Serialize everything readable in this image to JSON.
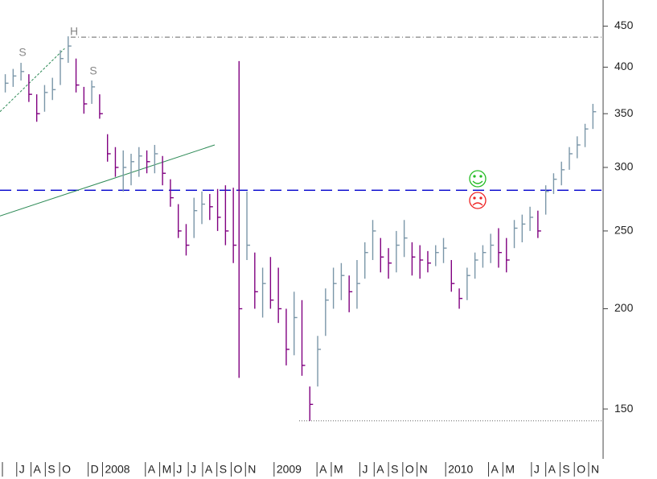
{
  "chart_data": {
    "type": "ohlc",
    "log_scale": true,
    "ylim": [
      130,
      485
    ],
    "yticks": [
      150,
      200,
      250,
      300,
      350,
      400,
      450
    ],
    "xlim": [
      0,
      41.9
    ],
    "xticks": [
      {
        "value": 1,
        "label": "J"
      },
      {
        "value": 2,
        "label": "A"
      },
      {
        "value": 3,
        "label": "S"
      },
      {
        "value": 4,
        "label": "O"
      },
      {
        "value": 6,
        "label": "D"
      },
      {
        "value": 7,
        "label": "2008"
      },
      {
        "value": 10,
        "label": "A"
      },
      {
        "value": 11,
        "label": "M"
      },
      {
        "value": 12,
        "label": "J"
      },
      {
        "value": 13,
        "label": "J"
      },
      {
        "value": 14,
        "label": "A"
      },
      {
        "value": 15,
        "label": "S"
      },
      {
        "value": 16,
        "label": "O"
      },
      {
        "value": 17,
        "label": "N"
      },
      {
        "value": 19,
        "label": "2009"
      },
      {
        "value": 22,
        "label": "A"
      },
      {
        "value": 23,
        "label": "M"
      },
      {
        "value": 25,
        "label": "J"
      },
      {
        "value": 26,
        "label": "A"
      },
      {
        "value": 27,
        "label": "S"
      },
      {
        "value": 28,
        "label": "O"
      },
      {
        "value": 29,
        "label": "N"
      },
      {
        "value": 31,
        "label": "2010"
      },
      {
        "value": 34,
        "label": "A"
      },
      {
        "value": 35,
        "label": "M"
      },
      {
        "value": 37,
        "label": "J"
      },
      {
        "value": 38,
        "label": "A"
      },
      {
        "value": 39,
        "label": "S"
      },
      {
        "value": 40,
        "label": "O"
      },
      {
        "value": 41,
        "label": "N"
      }
    ],
    "up_color": "#7a96a8",
    "down_color": "#800080",
    "x": [
      0.2,
      0.75,
      1.3,
      1.85,
      2.4,
      2.95,
      3.5,
      4.05,
      4.6,
      5.15,
      5.7,
      6.25,
      6.8,
      7.35,
      7.9,
      8.45,
      9.0,
      9.55,
      10.1,
      10.65,
      11.2,
      11.75,
      12.3,
      12.85,
      13.4,
      13.95,
      14.5,
      15.05,
      15.6,
      16.15,
      16.55,
      17.1,
      17.65,
      18.2,
      18.75,
      19.3,
      19.85,
      20.4,
      20.95,
      21.5,
      22.05,
      22.6,
      23.15,
      23.7,
      24.25,
      24.8,
      25.35,
      25.9,
      26.45,
      27.0,
      27.55,
      28.1,
      28.65,
      29.2,
      29.75,
      30.3,
      30.85,
      31.4,
      31.95,
      32.5,
      33.05,
      33.6,
      34.15,
      34.7,
      35.25,
      35.8,
      36.35,
      36.9,
      37.45,
      38.0,
      38.55,
      39.1,
      39.65,
      40.2,
      40.75,
      41.3
    ],
    "high": [
      392,
      398,
      405,
      392,
      370,
      380,
      388,
      420,
      437,
      410,
      378,
      385,
      370,
      330,
      318,
      315,
      312,
      318,
      315,
      320,
      310,
      290,
      270,
      255,
      275,
      280,
      278,
      282,
      285,
      283,
      407,
      280,
      235,
      225,
      232,
      225,
      200,
      210,
      205,
      160,
      185,
      212,
      225,
      228,
      220,
      230,
      242,
      258,
      245,
      238,
      250,
      258,
      242,
      240,
      236,
      240,
      245,
      230,
      212,
      225,
      235,
      240,
      248,
      252,
      245,
      258,
      262,
      268,
      265,
      285,
      295,
      305,
      318,
      328,
      340,
      360
    ],
    "low": [
      372,
      378,
      385,
      362,
      342,
      352,
      364,
      380,
      405,
      372,
      350,
      360,
      345,
      305,
      292,
      280,
      285,
      292,
      295,
      295,
      285,
      268,
      245,
      233,
      245,
      255,
      258,
      250,
      240,
      228,
      164,
      230,
      200,
      195,
      200,
      192,
      170,
      175,
      165,
      145,
      160,
      185,
      200,
      205,
      198,
      200,
      218,
      230,
      222,
      218,
      222,
      232,
      220,
      218,
      222,
      226,
      228,
      210,
      200,
      205,
      218,
      225,
      228,
      225,
      222,
      238,
      242,
      250,
      245,
      262,
      278,
      285,
      298,
      308,
      318,
      335
    ],
    "close": [
      382,
      390,
      395,
      370,
      350,
      372,
      375,
      410,
      425,
      380,
      360,
      378,
      350,
      312,
      300,
      300,
      305,
      310,
      305,
      312,
      295,
      275,
      250,
      240,
      265,
      270,
      268,
      260,
      250,
      240,
      200,
      240,
      210,
      215,
      205,
      200,
      178,
      195,
      170,
      152,
      178,
      205,
      215,
      220,
      210,
      215,
      235,
      250,
      232,
      228,
      240,
      245,
      232,
      230,
      228,
      235,
      238,
      215,
      206,
      220,
      230,
      235,
      240,
      235,
      230,
      252,
      255,
      260,
      250,
      280,
      290,
      298,
      312,
      320,
      335,
      352
    ],
    "annotations": [
      "S",
      "H",
      "S"
    ],
    "hlines": [
      {
        "value": 436,
        "style": "dash-dot",
        "color": "#666666"
      },
      {
        "value": 145,
        "style": "dotted",
        "color": "#666666"
      },
      {
        "value": 281,
        "style": "dashed",
        "color": "#0000cc"
      }
    ],
    "trend_lines": [
      {
        "x": [
          -0.17,
          14.85
        ],
        "y": [
          261,
          320
        ],
        "color": "#2e8b57"
      },
      {
        "x": [
          -0.17,
          4.35
        ],
        "y": [
          352,
          422
        ],
        "color": "#2e8b57",
        "dashed": true
      }
    ]
  }
}
